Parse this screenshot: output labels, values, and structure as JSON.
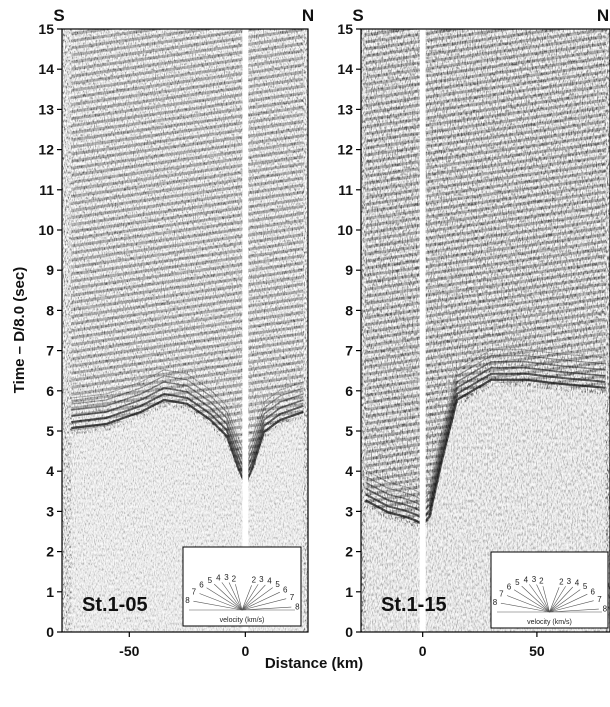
{
  "chart_data": {
    "type": "seismic_record_section",
    "ylabel": "Time – D/8.0 (sec)",
    "xlabel": "Distance (km)",
    "ylim": [
      0,
      15
    ],
    "yticks": [
      0,
      1,
      2,
      3,
      4,
      5,
      6,
      7,
      8,
      9,
      10,
      11,
      12,
      13,
      14,
      15
    ],
    "panels": [
      {
        "station": "St.1-05",
        "left_label": "S",
        "right_label": "N",
        "xlim": [
          -79,
          27
        ],
        "xticks": [
          -50,
          0
        ],
        "first_arrival": {
          "distance_km": [
            -75,
            -60,
            -45,
            -35,
            -25,
            -15,
            -8,
            -3,
            0,
            3,
            8,
            15,
            25
          ],
          "time_sec": [
            5.0,
            5.1,
            5.4,
            5.7,
            5.6,
            5.2,
            4.8,
            4.0,
            3.6,
            4.0,
            4.9,
            5.2,
            5.4
          ]
        }
      },
      {
        "station": "St.1-15",
        "left_label": "S",
        "right_label": "N",
        "xlim": [
          -27,
          82
        ],
        "xticks": [
          0,
          50
        ],
        "first_arrival": {
          "distance_km": [
            -25,
            -15,
            -8,
            -3,
            0,
            3,
            8,
            15,
            30,
            45,
            60,
            80
          ],
          "time_sec": [
            3.2,
            2.9,
            2.8,
            2.7,
            2.6,
            2.8,
            4.1,
            5.7,
            6.2,
            6.2,
            6.1,
            6.0
          ]
        }
      }
    ],
    "velocity_legend": {
      "caption": "velocity (km/s)",
      "left_labels": [
        "8",
        "7",
        "6",
        "5",
        "4",
        "3",
        "2"
      ],
      "right_labels": [
        "2",
        "3",
        "4",
        "5",
        "6",
        "7",
        "8"
      ]
    }
  }
}
